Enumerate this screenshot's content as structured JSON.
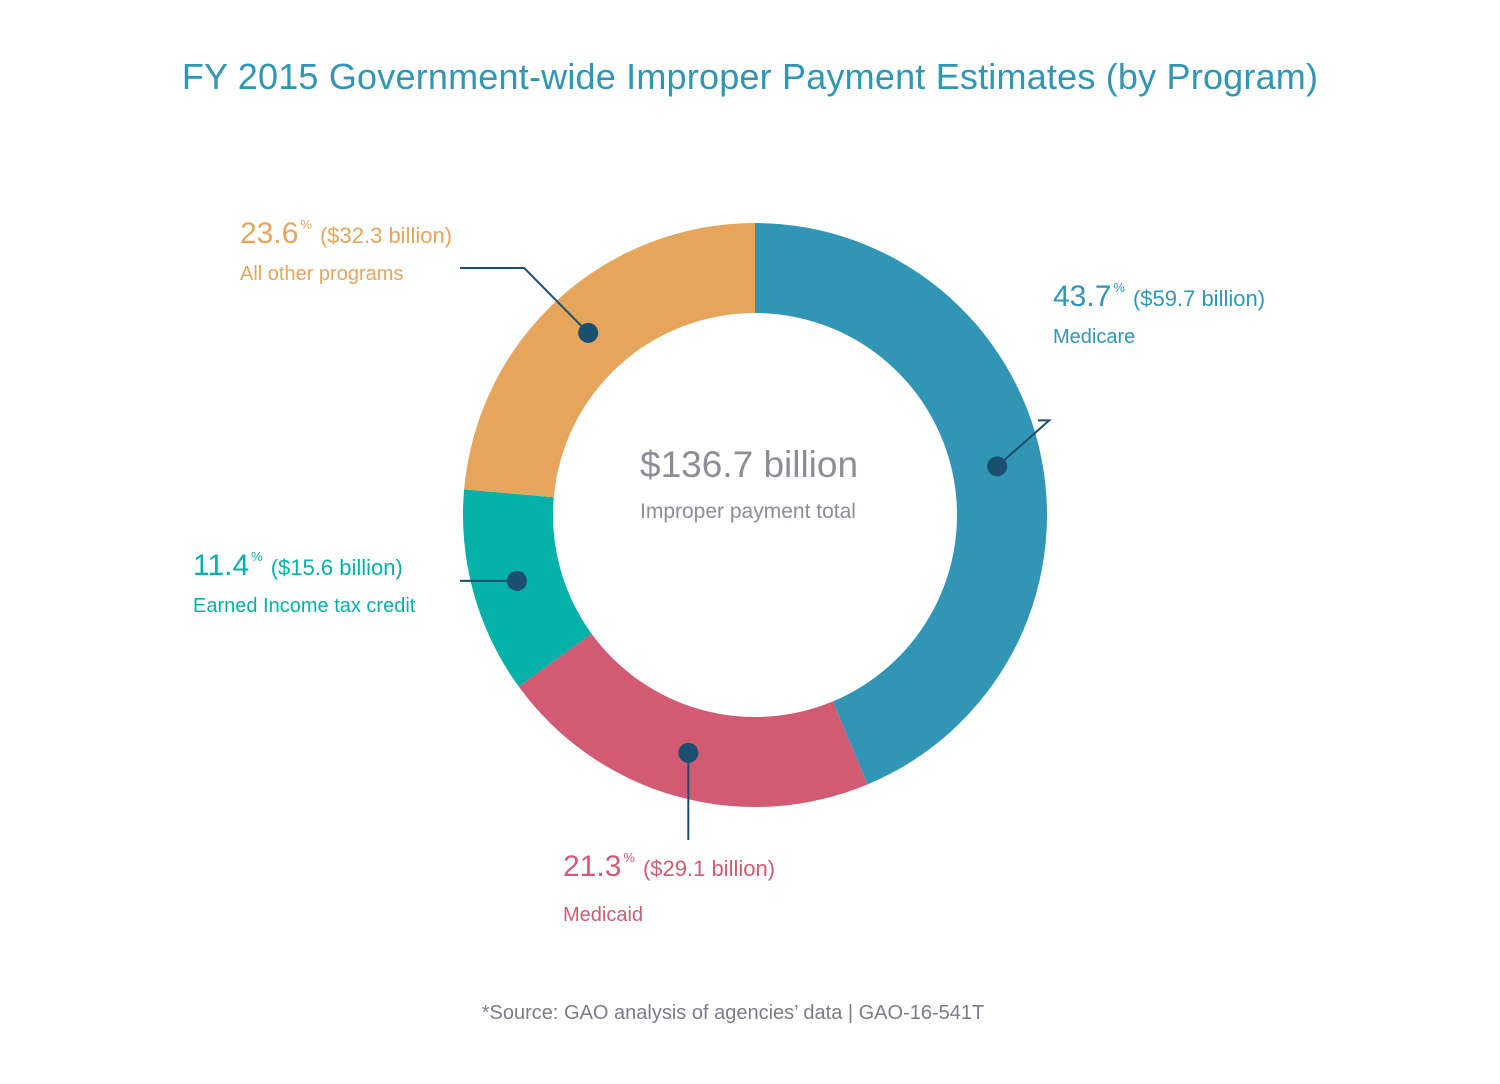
{
  "title": "FY 2015 Government-wide Improper Payment Estimates (by Program)",
  "center": {
    "total": "$136.7 billion",
    "caption": "Improper payment total"
  },
  "source": "*Source: GAO analysis of agencies’ data | GAO-16-541T",
  "colors": {
    "title": "#2f96b4",
    "leader": "#1a4f6e",
    "center_text": "#8d8d97"
  },
  "chart_data": {
    "type": "pie",
    "donut": true,
    "unit": "billion",
    "slices": [
      {
        "name": "Medicare",
        "percent": 43.7,
        "percent_label": "43.7",
        "percent_sign": "%",
        "amount_label": "($59.7 billion)",
        "value": 59.7,
        "color": "#3196b6"
      },
      {
        "name": "Medicaid",
        "percent": 21.3,
        "percent_label": "21.3",
        "percent_sign": "%",
        "amount_label": "($29.1 billion)",
        "value": 29.1,
        "color": "#d15b73"
      },
      {
        "name": "Earned Income tax credit",
        "percent": 11.4,
        "percent_label": "11.4",
        "percent_sign": "%",
        "amount_label": "($15.6 billion)",
        "value": 15.6,
        "color": "#04b1a8"
      },
      {
        "name": "All other programs",
        "percent": 23.6,
        "percent_label": "23.6",
        "percent_sign": "%",
        "amount_label": "($32.3 billion)",
        "value": 32.3,
        "color": "#e5a55c"
      }
    ]
  }
}
